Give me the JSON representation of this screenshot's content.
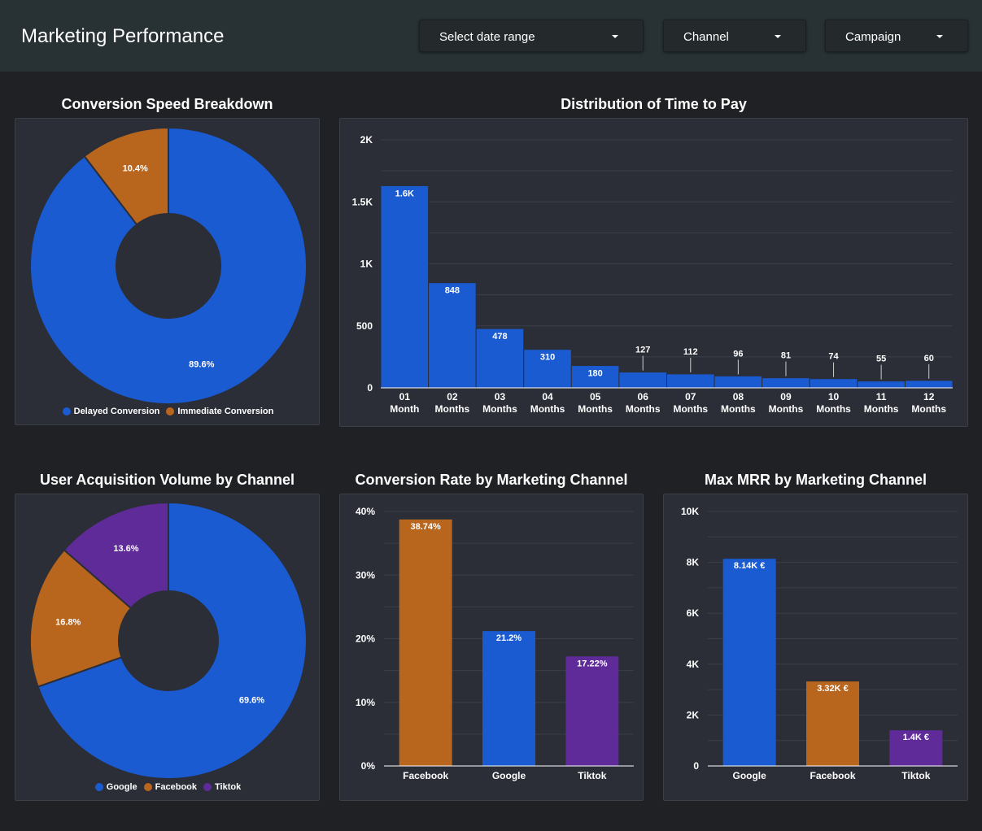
{
  "header": {
    "title": "Marketing Performance",
    "filters": [
      {
        "label": "Select date range"
      },
      {
        "label": "Channel"
      },
      {
        "label": "Campaign"
      }
    ]
  },
  "colors": {
    "blue": "#1a5bd1",
    "orange": "#b8651e",
    "purple": "#5e2b98",
    "grid": "#3b3f48"
  },
  "chart_data": [
    {
      "id": "conversion_speed",
      "type": "pie",
      "title": "Conversion Speed Breakdown",
      "slices": [
        {
          "label": "Delayed Conversion",
          "value": 89.6,
          "display": "89.6%",
          "color": "#1a5bd1"
        },
        {
          "label": "Immediate Conversion",
          "value": 10.4,
          "display": "10.4%",
          "color": "#b8651e"
        }
      ],
      "legend_position": "bottom"
    },
    {
      "id": "time_to_pay",
      "type": "bar",
      "title": "Distribution of Time to Pay",
      "categories": [
        [
          "01",
          "Month"
        ],
        [
          "02",
          "Months"
        ],
        [
          "03",
          "Months"
        ],
        [
          "04",
          "Months"
        ],
        [
          "05",
          "Months"
        ],
        [
          "06",
          "Months"
        ],
        [
          "07",
          "Months"
        ],
        [
          "08",
          "Months"
        ],
        [
          "09",
          "Months"
        ],
        [
          "10",
          "Months"
        ],
        [
          "11",
          "Months"
        ],
        [
          "12",
          "Months"
        ]
      ],
      "values": [
        1630,
        848,
        478,
        310,
        180,
        127,
        112,
        96,
        81,
        74,
        55,
        60
      ],
      "labels": [
        "1.6K",
        "848",
        "478",
        "310",
        "180",
        "127",
        "112",
        "96",
        "81",
        "74",
        "55",
        "60"
      ],
      "yticks": [
        0,
        500,
        1000,
        1500,
        2000
      ],
      "ytick_labels": [
        "0",
        "500",
        "1K",
        "1.5K",
        "2K"
      ],
      "ylim": [
        0,
        2000
      ]
    },
    {
      "id": "acquisition_volume",
      "type": "pie",
      "title": "User Acquisition Volume by Channel",
      "slices": [
        {
          "label": "Google",
          "value": 69.6,
          "display": "69.6%",
          "color": "#1a5bd1"
        },
        {
          "label": "Facebook",
          "value": 16.8,
          "display": "16.8%",
          "color": "#b8651e"
        },
        {
          "label": "Tiktok",
          "value": 13.6,
          "display": "13.6%",
          "color": "#5e2b98"
        }
      ],
      "legend_position": "bottom"
    },
    {
      "id": "conversion_rate",
      "type": "bar",
      "title": "Conversion Rate by Marketing Channel",
      "categories": [
        "Facebook",
        "Google",
        "Tiktok"
      ],
      "values": [
        38.74,
        21.2,
        17.22
      ],
      "labels": [
        "38.74%",
        "21.2%",
        "17.22%"
      ],
      "colors": [
        "#b8651e",
        "#1a5bd1",
        "#5e2b98"
      ],
      "yticks": [
        0,
        10,
        20,
        30,
        40
      ],
      "ytick_labels": [
        "0%",
        "10%",
        "20%",
        "30%",
        "40%"
      ],
      "ylim": [
        0,
        40
      ]
    },
    {
      "id": "max_mrr",
      "type": "bar",
      "title": "Max MRR by Marketing Channel",
      "categories": [
        "Google",
        "Facebook",
        "Tiktok"
      ],
      "values": [
        8140,
        3320,
        1400
      ],
      "labels": [
        "8.14K €",
        "3.32K €",
        "1.4K €"
      ],
      "colors": [
        "#1a5bd1",
        "#b8651e",
        "#5e2b98"
      ],
      "yticks": [
        0,
        2000,
        4000,
        6000,
        8000,
        10000
      ],
      "ytick_labels": [
        "0",
        "2K",
        "4K",
        "6K",
        "8K",
        "10K"
      ],
      "ylim": [
        0,
        10000
      ]
    }
  ]
}
